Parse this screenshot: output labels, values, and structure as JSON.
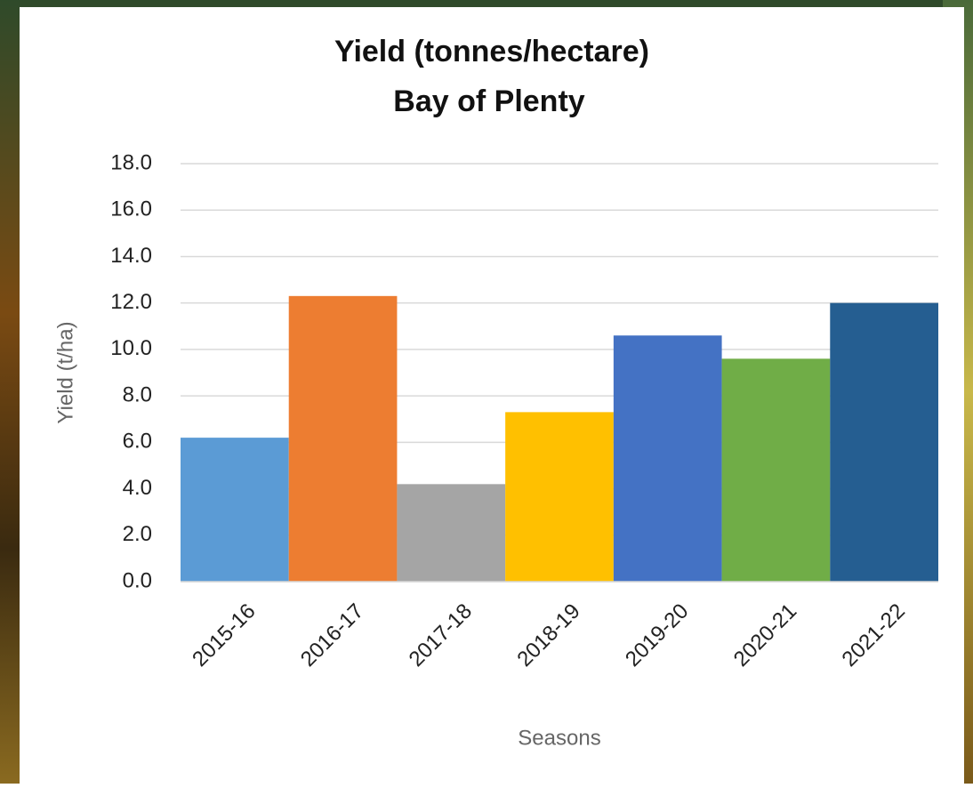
{
  "chart_data": {
    "type": "bar",
    "title": "Yield (tonnes/hectare)",
    "subtitle": "Bay of Plenty",
    "x_label": "Seasons",
    "y_label": "Yield (t/ha)",
    "categories": [
      "2015-16",
      "2016-17",
      "2017-18",
      "2018-19",
      "2019-20",
      "2020-21",
      "2021-22"
    ],
    "values": [
      6.2,
      12.3,
      4.2,
      7.3,
      10.6,
      9.6,
      12.0
    ],
    "colors": [
      "#5b9bd5",
      "#ed7d31",
      "#a5a5a5",
      "#ffc000",
      "#4472c4",
      "#70ad47",
      "#255e91"
    ],
    "ylim": [
      0,
      18
    ],
    "yticks": [
      {
        "value": 0,
        "label": "0.0"
      },
      {
        "value": 2,
        "label": "2.0"
      },
      {
        "value": 4,
        "label": "4.0"
      },
      {
        "value": 6,
        "label": "6.0"
      },
      {
        "value": 8,
        "label": "8.0"
      },
      {
        "value": 10,
        "label": "10.0"
      },
      {
        "value": 12,
        "label": "12.0"
      },
      {
        "value": 14,
        "label": "14.0"
      },
      {
        "value": 16,
        "label": "16.0"
      },
      {
        "value": 18,
        "label": "18.0"
      }
    ],
    "grid": true
  }
}
